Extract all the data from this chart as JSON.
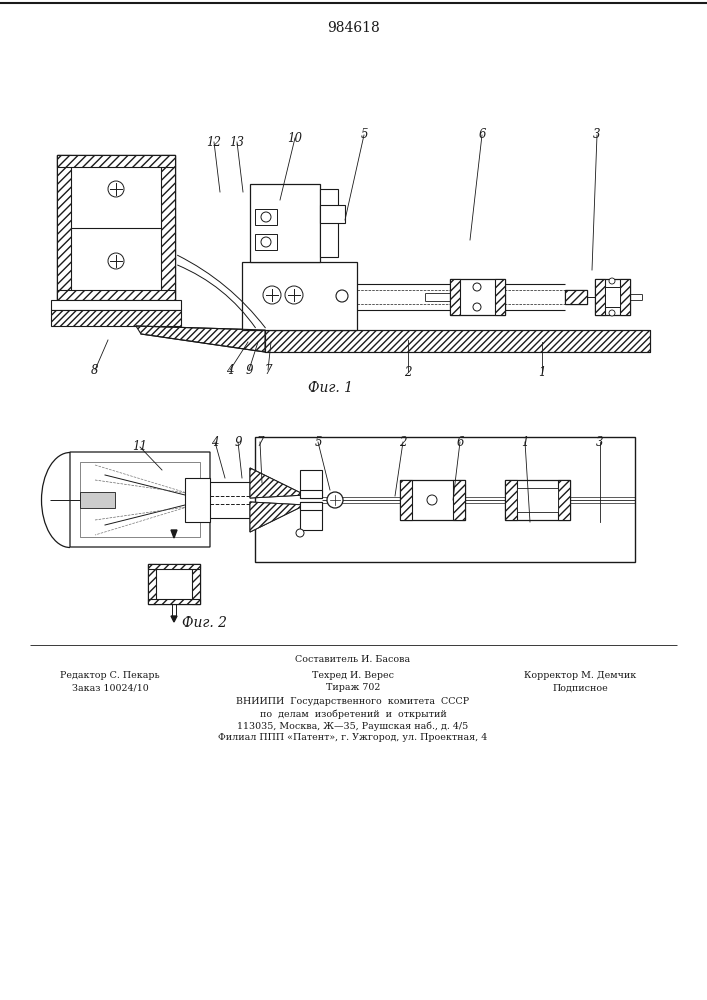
{
  "patent_number": "984618",
  "fig1_caption": "Фиг. 1",
  "fig2_caption": "Фиг. 2",
  "footer_line1": "Составитель И. Басова",
  "footer_line2_left": "Редактор С. Пекарь",
  "footer_line2_mid": "Техред И. Верес",
  "footer_line2_right": "Корректор М. Демчик",
  "footer_line3_left": "Заказ 10024/10",
  "footer_line3_mid": "Тираж 702",
  "footer_line3_right": "Подписное",
  "footer_line4": "ВНИИПИ  Государственного  комитета  СССР",
  "footer_line5": "по  делам  изобретений  и  открытий",
  "footer_line6": "113035, Москва, Ж—35, Раушская наб., д. 4/5",
  "footer_line7": "Филиал ППП «Патент», г. Ужгород, ул. Проектная, 4",
  "bg_color": "#ffffff",
  "line_color": "#1a1a1a"
}
